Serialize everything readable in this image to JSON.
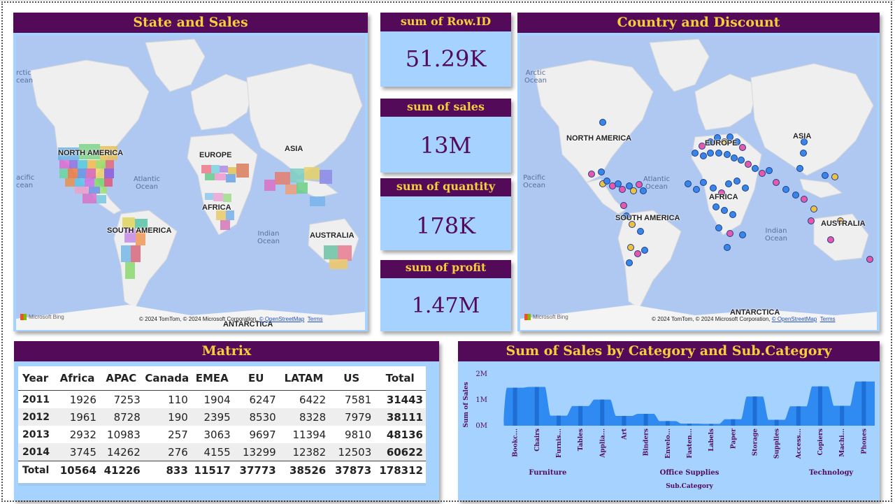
{
  "state_map": {
    "title": "State and Sales",
    "labels": {
      "north_america": "NORTH AMERICA",
      "europe": "EUROPE",
      "asia": "ASIA",
      "africa": "AFRICA",
      "south_america": "SOUTH AMERICA",
      "australia": "AUSTRALIA",
      "antarctica": "ANTARCTICA"
    },
    "oceans": {
      "arctic": "Arctic\nOcean",
      "pacific": "Pacific\nOcean",
      "atlantic": "Atlantic\nOcean",
      "indian": "Indian\nOcean"
    },
    "arctic_clip": "rctic\ncean",
    "pacific_clip": "acific\ncean",
    "bing": "Microsoft Bing",
    "attribution": "© 2024 TomTom, © 2024 Microsoft Corporation, ",
    "osm": "© OpenStreetMap",
    "terms": "Terms"
  },
  "kpis": [
    {
      "label": "sum of Row.ID",
      "value": "51.29K"
    },
    {
      "label": "sum of sales",
      "value": "13M"
    },
    {
      "label": "sum of quantity",
      "value": "178K"
    },
    {
      "label": "sum of profit",
      "value": "1.47M"
    }
  ],
  "country_map": {
    "title": "Country and Discount",
    "labels": {
      "north_america": "NORTH AMERICA",
      "europe": "EUROPE",
      "asia": "ASIA",
      "africa": "AFRICA",
      "south_america": "SOUTH AMERICA",
      "australia": "AUSTRALIA",
      "antarctica": "ANTARCTICA"
    },
    "oceans": {
      "arctic": "Arctic\nOcean",
      "pacific": "Pacific\nOcean",
      "atlantic": "Atlantic\nOcean",
      "indian": "Indian\nOcean"
    },
    "bing": "Microsoft Bing",
    "attribution": "© 2024 TomTom, © 2024 Microsoft Corporation, ",
    "osm": "© OpenStreetMap",
    "terms": "Terms"
  },
  "matrix": {
    "title": "Matrix",
    "headers": [
      "Year",
      "Africa",
      "APAC",
      "Canada",
      "EMEA",
      "EU",
      "LATAM",
      "US",
      "Total"
    ],
    "rows": [
      [
        "2011",
        "1926",
        "7253",
        "110",
        "1904",
        "6247",
        "6422",
        "7581",
        "31443"
      ],
      [
        "2012",
        "1961",
        "8728",
        "190",
        "2395",
        "8530",
        "8328",
        "7979",
        "38111"
      ],
      [
        "2013",
        "2932",
        "10983",
        "257",
        "3063",
        "9697",
        "11394",
        "9810",
        "48136"
      ],
      [
        "2014",
        "3745",
        "14262",
        "276",
        "4155",
        "13299",
        "12382",
        "12503",
        "60622"
      ]
    ],
    "total_row": [
      "Total",
      "10564",
      "41226",
      "833",
      "11517",
      "37773",
      "38526",
      "37873",
      "178312"
    ]
  },
  "chart_data": {
    "type": "area",
    "title": "Sum of Sales by Category and Sub.Category",
    "xlabel": "Sub.Category",
    "ylabel": "Sum of Sales",
    "ylim": [
      0,
      2000000
    ],
    "yticks": [
      "0M",
      "1M",
      "2M"
    ],
    "categories": [
      "Bookc...",
      "Chairs",
      "Furnis...",
      "Tables",
      "Applia...",
      "Art",
      "Binders",
      "Envelo...",
      "Fasten...",
      "Labels",
      "Paper",
      "Storage",
      "Supplies",
      "Access...",
      "Copiers",
      "Machi...",
      "Phones"
    ],
    "groups": [
      {
        "name": "Furniture",
        "count": 4
      },
      {
        "name": "Office Supplies",
        "count": 9
      },
      {
        "name": "Technology",
        "count": 4
      }
    ],
    "values": [
      1470000,
      1500000,
      390000,
      760000,
      1010000,
      380000,
      460000,
      180000,
      80000,
      70000,
      250000,
      1130000,
      230000,
      750000,
      1520000,
      770000,
      1710000
    ],
    "colors": {
      "fill": "#2f8bf2",
      "stripe": "#1d6fd6"
    }
  }
}
